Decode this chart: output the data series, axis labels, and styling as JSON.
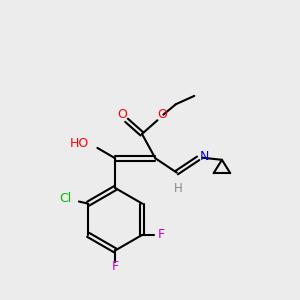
{
  "bg_color": "#ececec",
  "bond_color": "#000000",
  "colors": {
    "O": "#ff0000",
    "N": "#0000cc",
    "Cl": "#00bb00",
    "F": "#cc00cc",
    "H": "#888888"
  },
  "figsize": [
    3.0,
    3.0
  ],
  "dpi": 100,
  "lw": 1.5,
  "fs": 9.0
}
